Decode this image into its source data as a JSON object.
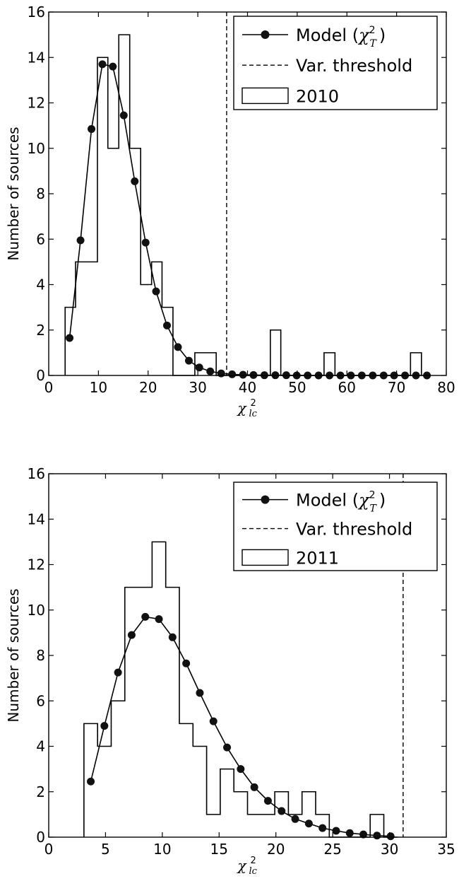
{
  "chart_data": [
    {
      "type": "line",
      "title": "",
      "ylabel": "Number of sources",
      "xlabel": "χ_lc^2",
      "xlim": [
        0,
        80
      ],
      "ylim": [
        0,
        16
      ],
      "xticks": [
        0,
        10,
        20,
        30,
        40,
        50,
        60,
        70,
        80
      ],
      "yticks": [
        0,
        2,
        4,
        6,
        8,
        10,
        12,
        14,
        16
      ],
      "grid": false,
      "legend_position": "top-right",
      "threshold": 35.8,
      "histogram": {
        "name": "2010",
        "bin_edges": [
          3.3,
          5.4,
          7.6,
          9.8,
          11.9,
          14.1,
          16.3,
          18.5,
          20.7,
          22.8,
          25.0,
          27.2,
          29.4,
          31.5,
          33.7,
          35.9,
          38.0,
          40.2,
          42.4,
          44.6,
          46.7,
          48.9,
          51.1,
          53.2,
          55.4,
          57.6,
          59.8,
          61.9,
          64.1,
          66.3,
          68.4,
          70.6,
          72.8,
          75.0
        ],
        "counts": [
          3,
          5,
          5,
          14,
          10,
          15,
          10,
          4,
          5,
          3,
          0,
          0,
          1,
          1,
          0,
          0,
          0,
          0,
          0,
          2,
          0,
          0,
          0,
          0,
          1,
          0,
          0,
          0,
          0,
          0,
          0,
          0,
          1
        ]
      },
      "model": {
        "name": "Model",
        "x": [
          4.2,
          6.4,
          8.6,
          10.8,
          12.9,
          15.1,
          17.3,
          19.5,
          21.6,
          23.8,
          26.0,
          28.2,
          30.3,
          32.5,
          34.7,
          36.9,
          39.1,
          41.2,
          43.4,
          45.6,
          47.8,
          49.9,
          52.1,
          54.3,
          56.5,
          58.7,
          60.8,
          63.0,
          65.2,
          67.4,
          69.5,
          71.7,
          73.9,
          76.1
        ],
        "y": [
          1.65,
          5.95,
          10.85,
          13.7,
          13.6,
          11.45,
          8.55,
          5.85,
          3.7,
          2.2,
          1.25,
          0.65,
          0.35,
          0.18,
          0.09,
          0.05,
          0.03,
          0.02,
          0.01,
          0.01,
          0.01,
          0,
          0,
          0,
          0,
          0,
          0,
          0,
          0,
          0,
          0,
          0,
          0,
          0
        ]
      },
      "legend": [
        {
          "label": "Model (",
          "math": "χ",
          "sup": "2",
          "sub": "T",
          "close": ")"
        },
        {
          "label": "Var.  threshold"
        },
        {
          "label": "2010"
        }
      ]
    },
    {
      "type": "line",
      "title": "",
      "ylabel": "Number of sources",
      "xlabel": "χ_lc^2",
      "xlim": [
        0,
        35
      ],
      "ylim": [
        0,
        16
      ],
      "xticks": [
        0,
        5,
        10,
        15,
        20,
        25,
        30,
        35
      ],
      "yticks": [
        0,
        2,
        4,
        6,
        8,
        10,
        12,
        14,
        16
      ],
      "grid": false,
      "legend_position": "top-right",
      "threshold": 31.2,
      "histogram": {
        "name": "2011",
        "bin_edges": [
          3.1,
          4.3,
          5.5,
          6.7,
          7.9,
          9.1,
          10.3,
          11.5,
          12.7,
          13.9,
          15.1,
          16.3,
          17.5,
          18.7,
          19.9,
          21.1,
          22.3,
          23.5,
          24.7,
          25.9,
          27.1,
          28.3,
          29.5,
          30.7
        ],
        "counts": [
          5,
          4,
          6,
          11,
          11,
          13,
          11,
          5,
          4,
          1,
          3,
          2,
          1,
          1,
          2,
          1,
          2,
          1,
          0,
          0,
          0,
          1,
          0
        ]
      },
      "model": {
        "name": "Model",
        "x": [
          3.7,
          4.9,
          6.1,
          7.3,
          8.5,
          9.7,
          10.9,
          12.1,
          13.3,
          14.5,
          15.7,
          16.9,
          18.1,
          19.3,
          20.5,
          21.7,
          22.9,
          24.1,
          25.3,
          26.5,
          27.7,
          28.9,
          30.1
        ],
        "y": [
          2.45,
          4.9,
          7.25,
          8.9,
          9.7,
          9.6,
          8.8,
          7.65,
          6.35,
          5.1,
          3.95,
          3.0,
          2.2,
          1.6,
          1.15,
          0.8,
          0.6,
          0.4,
          0.28,
          0.18,
          0.12,
          0.07,
          0.04
        ]
      },
      "legend": [
        {
          "label": "Model (",
          "math": "χ",
          "sup": "2",
          "sub": "T",
          "close": ")"
        },
        {
          "label": "Var.  threshold"
        },
        {
          "label": "2011"
        }
      ]
    }
  ]
}
